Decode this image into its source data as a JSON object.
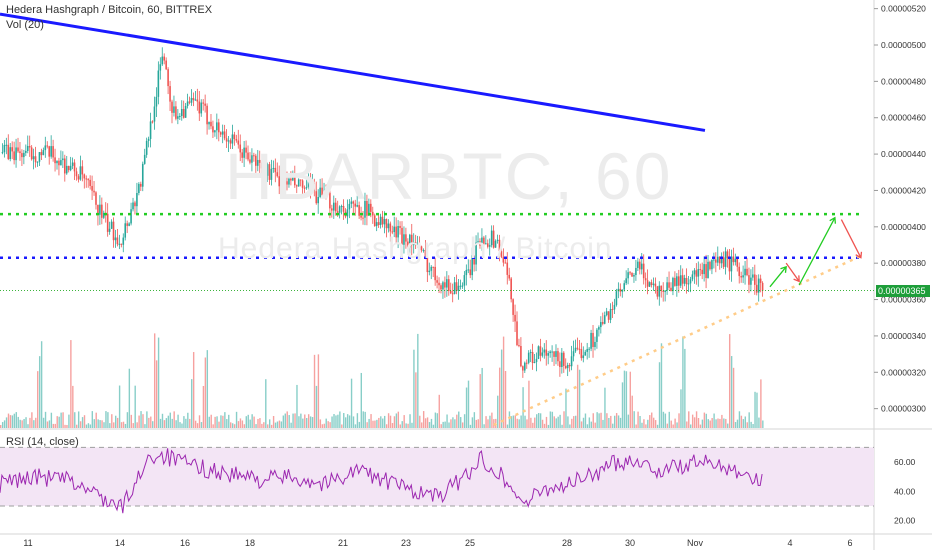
{
  "header": {
    "symbol_line": "Hedera Hashgraph / Bitcoin, 60, BITTREX",
    "volume_label": "Vol (20)"
  },
  "watermark": {
    "ticker": "HBARBTC, 60",
    "name": "Hedera Hashgraph / Bitcoin"
  },
  "rsi_panel": {
    "label": "RSI (14, close)",
    "levels": [
      70,
      30
    ],
    "ticks": [
      "60.00",
      "40.00",
      "20.00"
    ]
  },
  "last_price": "0.00000365",
  "colors": {
    "up_candle": "#26a69a",
    "down_candle": "#ef5350",
    "trendline": "#1a1aff",
    "resistance_green": "#22cc22",
    "resistance_blue": "#1a1aff",
    "support_dotted": "#ffcc88",
    "rsi_line": "#9c27b0",
    "rsi_band": "#f3e5f5",
    "last_price_line": "#22aa22",
    "arrow_up": "#22cc22",
    "arrow_down": "#ef5350"
  },
  "chart_data": {
    "type": "candlestick",
    "title": "Hedera Hashgraph / Bitcoin, 60, BITTREX",
    "y_axis": {
      "ticks": [
        "0.00000520",
        "0.00000500",
        "0.00000480",
        "0.00000460",
        "0.00000440",
        "0.00000420",
        "0.00000400",
        "0.00000380",
        "0.00000360",
        "0.00000340",
        "0.00000320",
        "0.00000300"
      ],
      "range": [
        2.91e-06,
        5.22e-06
      ]
    },
    "x_axis": {
      "ticks": [
        "11",
        "14",
        "16",
        "18",
        "21",
        "23",
        "25",
        "28",
        "30",
        "Nov",
        "4",
        "6"
      ]
    },
    "price_path": [
      [
        0,
        4.41e-06
      ],
      [
        1.5,
        4.4e-06
      ],
      [
        2.5,
        4.28e-06
      ],
      [
        3.3,
        4e-06
      ],
      [
        3.7,
        3.93e-06
      ],
      [
        4.3,
        4.24e-06
      ],
      [
        5.0,
        4.97e-06
      ],
      [
        5.3,
        4.62e-06
      ],
      [
        6.0,
        4.68e-06
      ],
      [
        6.6,
        4.55e-06
      ],
      [
        7.5,
        4.4e-06
      ],
      [
        8.5,
        4.27e-06
      ],
      [
        9.5,
        4.2e-06
      ],
      [
        10.5,
        4.1e-06
      ],
      [
        11.2,
        4.1e-06
      ],
      [
        12.0,
        3.98e-06
      ],
      [
        12.7,
        3.92e-06
      ],
      [
        13.3,
        3.75e-06
      ],
      [
        13.8,
        3.66e-06
      ],
      [
        14.3,
        3.7e-06
      ],
      [
        14.8,
        3.95e-06
      ],
      [
        15.3,
        3.92e-06
      ],
      [
        15.7,
        3.65e-06
      ],
      [
        16.0,
        3.25e-06
      ],
      [
        16.6,
        3.3e-06
      ],
      [
        17.5,
        3.25e-06
      ],
      [
        18.3,
        3.4e-06
      ],
      [
        19.0,
        3.62e-06
      ],
      [
        19.6,
        3.78e-06
      ],
      [
        20.2,
        3.65e-06
      ],
      [
        20.8,
        3.7e-06
      ],
      [
        21.7,
        3.75e-06
      ],
      [
        22.3,
        3.82e-06
      ],
      [
        23.0,
        3.72e-06
      ],
      [
        23.5,
        3.66e-06
      ]
    ],
    "volume_profile": "small bars with spikes near 11, 16, 21, 25 and 30",
    "rsi_path": [
      [
        0,
        45
      ],
      [
        1,
        50
      ],
      [
        2,
        48
      ],
      [
        3,
        38
      ],
      [
        3.7,
        28
      ],
      [
        4.2,
        45
      ],
      [
        4.5,
        63
      ],
      [
        5.0,
        65
      ],
      [
        5.5,
        60
      ],
      [
        6.2,
        56
      ],
      [
        7.0,
        52
      ],
      [
        8.0,
        48
      ],
      [
        9.0,
        50
      ],
      [
        10.0,
        45
      ],
      [
        11.0,
        55
      ],
      [
        12.0,
        46
      ],
      [
        12.8,
        40
      ],
      [
        13.5,
        36
      ],
      [
        14.2,
        48
      ],
      [
        14.8,
        62
      ],
      [
        15.3,
        55
      ],
      [
        15.8,
        40
      ],
      [
        16.2,
        32
      ],
      [
        16.8,
        42
      ],
      [
        17.5,
        45
      ],
      [
        18.3,
        52
      ],
      [
        19.0,
        60
      ],
      [
        19.6,
        62
      ],
      [
        20.2,
        54
      ],
      [
        20.8,
        56
      ],
      [
        21.5,
        60
      ],
      [
        22.2,
        58
      ],
      [
        22.8,
        54
      ],
      [
        23.3,
        48
      ],
      [
        23.5,
        46
      ]
    ],
    "drawings": [
      {
        "kind": "trendline",
        "from": [
          0,
          5.17e-06
        ],
        "to": [
          21.7,
          4.53e-06
        ]
      },
      {
        "kind": "horizontal_dotted",
        "price": 4.07e-06,
        "from_x": 0,
        "to_x": 26.5
      },
      {
        "kind": "horizontal_dotted",
        "price": 3.83e-06,
        "from_x": 0,
        "to_x": 26.5
      },
      {
        "kind": "trendline_dotted",
        "from": [
          15.2,
          2.91e-06
        ],
        "to": [
          26.5,
          3.84e-06
        ]
      },
      {
        "kind": "arrow",
        "from": [
          23.7,
          3.67e-06
        ],
        "to": [
          24.2,
          3.78e-06
        ]
      },
      {
        "kind": "arrow",
        "from": [
          24.2,
          3.8e-06
        ],
        "to": [
          24.6,
          3.7e-06
        ]
      },
      {
        "kind": "arrow",
        "from": [
          24.6,
          3.68e-06
        ],
        "to": [
          25.7,
          4.05e-06
        ]
      },
      {
        "kind": "arrow",
        "from": [
          25.9,
          4.04e-06
        ],
        "to": [
          26.5,
          3.83e-06
        ]
      }
    ],
    "horizontal_line_price": 3.65e-06
  }
}
